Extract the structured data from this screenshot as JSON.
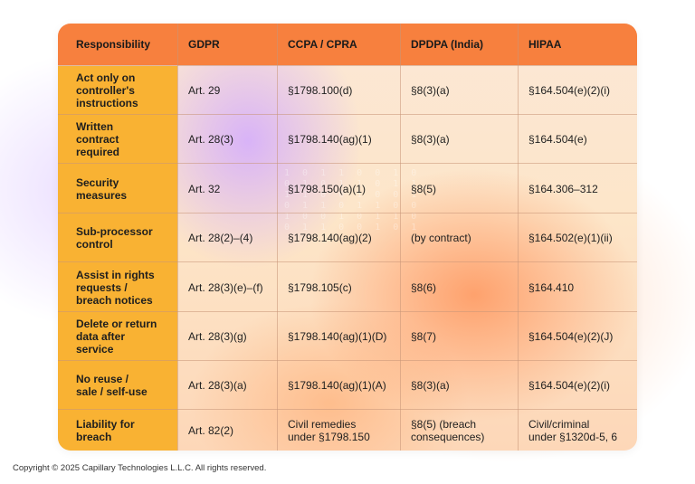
{
  "table": {
    "headers": [
      "Responsibility",
      "GDPR",
      "CCPA / CPRA",
      "DPDPA (India)",
      "HIPAA"
    ],
    "rows": [
      {
        "responsibility": [
          "Act only on",
          "controller's",
          "instructions"
        ],
        "gdpr": "Art. 29",
        "ccpa": "§1798.100(d)",
        "dpdpa": "§8(3)(a)",
        "hipaa": "§164.504(e)(2)(i)"
      },
      {
        "responsibility": [
          "Written",
          "contract",
          "required"
        ],
        "gdpr": "Art. 28(3)",
        "ccpa": "§1798.140(ag)(1)",
        "dpdpa": "§8(3)(a)",
        "hipaa": "§164.504(e)"
      },
      {
        "responsibility": [
          "Security",
          "measures"
        ],
        "gdpr": "Art. 32",
        "ccpa": "§1798.150(a)(1)",
        "dpdpa": "§8(5)",
        "hipaa": "§164.306–312"
      },
      {
        "responsibility": [
          "Sub-processor",
          "control"
        ],
        "gdpr": "Art. 28(2)–(4)",
        "ccpa": "§1798.140(ag)(2)",
        "dpdpa": "(by contract)",
        "hipaa": "§164.502(e)(1)(ii)"
      },
      {
        "responsibility": [
          "Assist in rights",
          "requests /",
          "breach notices"
        ],
        "gdpr": "Art. 28(3)(e)–(f)",
        "ccpa": "§1798.105(c)",
        "dpdpa": "§8(6)",
        "hipaa": "§164.410"
      },
      {
        "responsibility": [
          "Delete or return",
          "data after",
          "service"
        ],
        "gdpr": "Art. 28(3)(g)",
        "ccpa": "§1798.140(ag)(1)(D)",
        "dpdpa": "§8(7)",
        "hipaa": "§164.504(e)(2)(J)"
      },
      {
        "responsibility": [
          "No reuse /",
          "sale / self-use"
        ],
        "gdpr": "Art. 28(3)(a)",
        "ccpa": "§1798.140(ag)(1)(A)",
        "dpdpa": "§8(3)(a)",
        "hipaa": "§164.504(e)(2)(i)"
      },
      {
        "responsibility": [
          "Liability for",
          "breach"
        ],
        "gdpr": "Art. 82(2)",
        "ccpa": [
          "Civil remedies",
          "under §1798.150"
        ],
        "dpdpa": [
          "§8(5) (breach",
          "consequences)"
        ],
        "hipaa": [
          "Civil/criminal",
          "under §1320d-5, 6"
        ]
      }
    ]
  },
  "copyright": "Copyright © 2025 Capillary Technologies L.L.C. All rights reserved.",
  "colors": {
    "header_bg": "#f7803e",
    "first_column_bg": "#f9b233"
  }
}
